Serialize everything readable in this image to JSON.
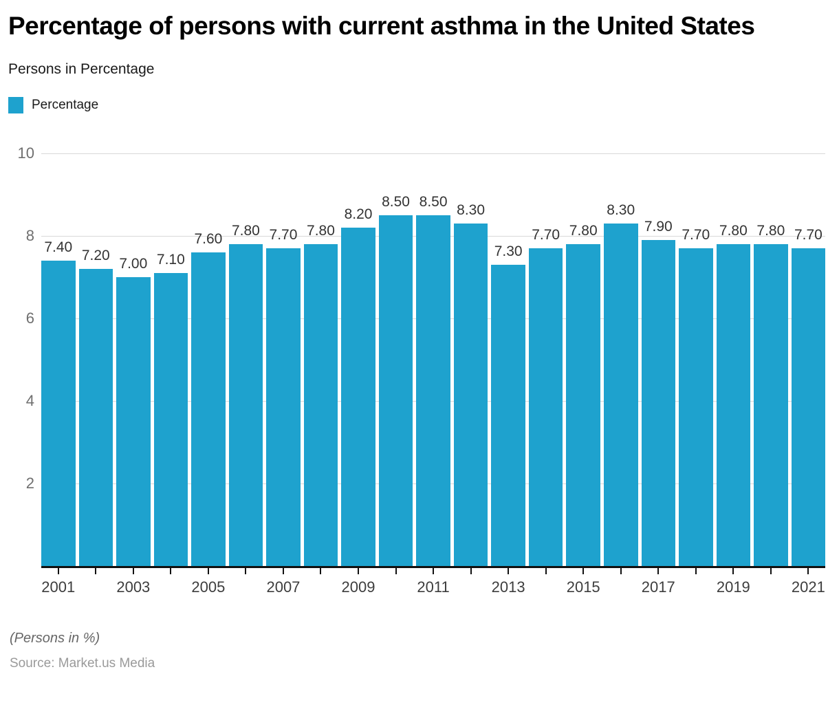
{
  "header": {
    "title": "Percentage of persons with current asthma in the United States",
    "subtitle": "Persons in Percentage"
  },
  "legend": {
    "label": "Percentage",
    "swatch_color": "#1EA2CE"
  },
  "chart_data": {
    "type": "bar",
    "title": "Percentage of persons with current asthma in the United States",
    "subtitle": "Persons in Percentage",
    "categories": [
      2001,
      2002,
      2003,
      2004,
      2005,
      2006,
      2007,
      2008,
      2009,
      2010,
      2011,
      2012,
      2013,
      2014,
      2015,
      2016,
      2017,
      2018,
      2019,
      2020,
      2021
    ],
    "values": [
      7.4,
      7.2,
      7.0,
      7.1,
      7.6,
      7.8,
      7.7,
      7.8,
      8.2,
      8.5,
      8.5,
      8.3,
      7.3,
      7.7,
      7.8,
      8.3,
      7.9,
      7.7,
      7.8,
      7.8,
      7.7
    ],
    "value_labels": [
      "7.40",
      "7.20",
      "7.00",
      "7.10",
      "7.60",
      "7.80",
      "7.70",
      "7.80",
      "8.20",
      "8.50",
      "8.50",
      "8.30",
      "7.30",
      "7.70",
      "7.80",
      "8.30",
      "7.90",
      "7.70",
      "7.80",
      "7.80",
      "7.70"
    ],
    "x_tick_labels": [
      "2001",
      "2003",
      "2005",
      "2007",
      "2009",
      "2011",
      "2013",
      "2015",
      "2017",
      "2019",
      "2021"
    ],
    "y_ticks": [
      2,
      4,
      6,
      8,
      10
    ],
    "ylim": [
      0,
      10
    ],
    "xlabel": "",
    "ylabel": "Persons in Percentage",
    "grid": "horizontal",
    "legend_position": "top-left",
    "series_name": "Percentage",
    "bar_color": "#1EA2CE",
    "gridline_color": "#d8d8d8"
  },
  "footer": {
    "note": "(Persons in %)",
    "source": "Source: Market.us Media"
  }
}
